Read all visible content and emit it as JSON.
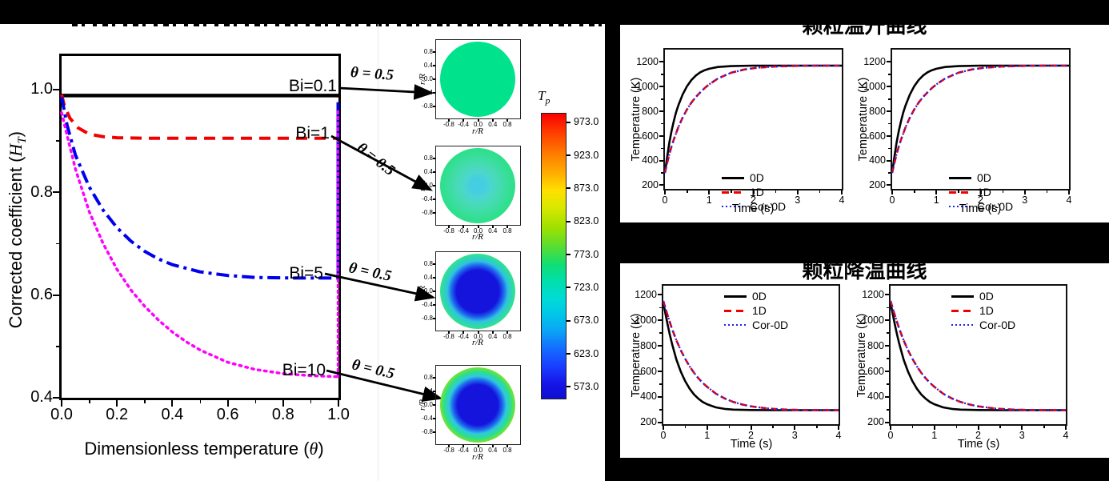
{
  "left_chart": {
    "ylabel_pre": "Corrected coefficient (",
    "ylabel_sym": "H",
    "ylabel_sub": "T",
    "ylabel_post": ")",
    "xlabel_pre": "Dimensionless temperature (",
    "xlabel_sym": "θ",
    "xlabel_post": ")",
    "bi": [
      "Bi=0.1",
      "Bi=1",
      "Bi=5",
      "Bi=10"
    ],
    "theta_annotation": "θ = 0.5"
  },
  "contours": {
    "axis_label": "r/R",
    "colorbar_title_sym": "T",
    "colorbar_title_sub": "p"
  },
  "right_panel": {
    "cards": [
      {
        "title": "颗粒温升曲线"
      },
      {
        "title": "颗粒降温曲线"
      }
    ],
    "legend": [
      "0D",
      "1D",
      "Cor-0D"
    ],
    "xlabel": "Time (s)",
    "ylabel": "Temperature (K)"
  },
  "chart_data": [
    {
      "id": "corrected-coefficient-vs-theta",
      "type": "line",
      "xlabel": "Dimensionless temperature (θ)",
      "ylabel": "Corrected coefficient (H_T)",
      "xlim": [
        0,
        1
      ],
      "ylim": [
        0.4,
        1.065
      ],
      "grid": false,
      "legend_position": "inline-labels",
      "xticks": {
        "vals": [
          0,
          0.2,
          0.4,
          0.6,
          0.8,
          1
        ],
        "labels": [
          "0.0",
          "0.2",
          "0.4",
          "0.6",
          "0.8",
          "1.0"
        ]
      },
      "yticks": {
        "vals": [
          0.4,
          0.6,
          0.8,
          1.0
        ],
        "labels": [
          "0.4",
          "0.6",
          "0.8",
          "1.0"
        ]
      },
      "xminor": [
        0.1,
        0.3,
        0.5,
        0.7,
        0.9
      ],
      "yminor": [
        0.5,
        0.7,
        0.9
      ],
      "tick": 8,
      "mtick": 4,
      "b": 3,
      "lab": {
        "xw": 46,
        "xoff": 7,
        "yw": 50,
        "yoff": 8,
        "fs": 20
      },
      "series": [
        {
          "name": "Bi=0.1",
          "color": "#000000",
          "width": 4.5,
          "points": [
            [
              0,
              0.988
            ],
            [
              1,
              0.988
            ]
          ]
        },
        {
          "name": "Bi=1",
          "color": "#f20000",
          "width": 4,
          "dash": "14 9",
          "points": [
            [
              0,
              0.99
            ],
            [
              0.01,
              0.968
            ],
            [
              0.03,
              0.944
            ],
            [
              0.06,
              0.925
            ],
            [
              0.1,
              0.913
            ],
            [
              0.15,
              0.908
            ],
            [
              0.2,
              0.906
            ],
            [
              0.3,
              0.905
            ],
            [
              0.6,
              0.905
            ],
            [
              1,
              0.905
            ]
          ]
        },
        {
          "name": "Bi=5",
          "color": "#0000ee",
          "width": 4,
          "dash": "16 6 4 6",
          "points": [
            [
              0,
              0.985
            ],
            [
              0.02,
              0.93
            ],
            [
              0.05,
              0.872
            ],
            [
              0.1,
              0.81
            ],
            [
              0.15,
              0.765
            ],
            [
              0.2,
              0.731
            ],
            [
              0.25,
              0.705
            ],
            [
              0.3,
              0.685
            ],
            [
              0.35,
              0.67
            ],
            [
              0.4,
              0.659
            ],
            [
              0.5,
              0.645
            ],
            [
              0.6,
              0.638
            ],
            [
              0.7,
              0.634
            ],
            [
              0.85,
              0.633
            ],
            [
              1,
              0.633
            ]
          ]
        },
        {
          "name": "Bi=10",
          "color": "#ff00ff",
          "width": 3.5,
          "dash": "2.5 5.5",
          "cap": "round",
          "points": [
            [
              0,
              0.955
            ],
            [
              0.02,
              0.91
            ],
            [
              0.05,
              0.845
            ],
            [
              0.1,
              0.762
            ],
            [
              0.15,
              0.7
            ],
            [
              0.2,
              0.65
            ],
            [
              0.25,
              0.61
            ],
            [
              0.3,
              0.578
            ],
            [
              0.35,
              0.551
            ],
            [
              0.4,
              0.528
            ],
            [
              0.45,
              0.509
            ],
            [
              0.5,
              0.493
            ],
            [
              0.6,
              0.469
            ],
            [
              0.7,
              0.455
            ],
            [
              0.8,
              0.447
            ],
            [
              0.9,
              0.443
            ],
            [
              1,
              0.441
            ]
          ]
        },
        {
          "name": "Bi=1-right-edge",
          "color": "#f20000",
          "width": 3.5,
          "dash": "10 7",
          "points": [
            [
              0.998,
              0.905
            ],
            [
              0.998,
              0.985
            ]
          ]
        },
        {
          "name": "Bi=5-right-edge",
          "color": "#0000ee",
          "width": 3.5,
          "points": [
            [
              0.998,
              0.633
            ],
            [
              0.998,
              0.975
            ]
          ]
        },
        {
          "name": "Bi=10-right-edge",
          "color": "#ff00ff",
          "width": 3,
          "dash": "2.5 4.5",
          "cap": "round",
          "points": [
            [
              0.998,
              0.441
            ],
            [
              0.998,
              0.96
            ]
          ]
        }
      ]
    },
    {
      "id": "particle-temperature-contours",
      "type": "heatmap",
      "xlabel": "r/R",
      "ylabel": "r/R",
      "plots": [
        {
          "condition": "Bi=0.1, θ=0.5",
          "profile": "uniform",
          "T_edge_K": 770,
          "T_center_K": 770
        },
        {
          "condition": "Bi=1, θ=0.5",
          "profile": "mild radial gradient",
          "T_edge_K": 760,
          "T_center_K": 690
        },
        {
          "condition": "Bi=5, θ=0.5",
          "profile": "strong radial gradient",
          "T_edge_K": 865,
          "T_center_K": 585
        },
        {
          "condition": "Bi=10, θ=0.5",
          "profile": "steep radial gradient",
          "T_edge_K": 965,
          "T_center_K": 578
        }
      ],
      "mini_cfg": {
        "xlim": [
          -1.15,
          1.15
        ],
        "ylim": [
          -1.15,
          1.15
        ],
        "xticks": {
          "vals": [
            -0.8,
            -0.4,
            0,
            0.4,
            0.8
          ],
          "labels": [
            "-0.8",
            "-0.4",
            "0.0",
            "0.4",
            "0.8"
          ]
        },
        "yticks": {
          "vals": [
            -0.8,
            -0.4,
            0,
            0.4,
            0.8
          ],
          "labels": [
            "-0.8",
            "-0.4",
            "0.0",
            "0.4",
            "0.8"
          ]
        },
        "tick": 3,
        "mtick": 2,
        "b": 1,
        "lab": {
          "xw": 24,
          "xoff": 2,
          "yw": 22,
          "yoff": 3,
          "fs": 8
        }
      },
      "colorbar": {
        "title": "T_p",
        "cmap": "jet",
        "range_K": [
          573,
          973
        ],
        "tick_labels": [
          "973.0",
          "923.0",
          "873.0",
          "823.0",
          "773.0",
          "723.0",
          "673.0",
          "623.0",
          "573.0"
        ],
        "cfg": {
          "xlim": [
            0,
            1
          ],
          "ylim": [
            555,
            986
          ],
          "side": "right",
          "yticks": {
            "vals": [
              973,
              923,
              873,
              823,
              773,
              723,
              673,
              623,
              573
            ],
            "labels": [
              "973.0",
              "923.0",
              "873.0",
              "823.0",
              "773.0",
              "723.0",
              "673.0",
              "623.0",
              "573.0"
            ]
          },
          "tick": 5,
          "b": 1,
          "lab": {
            "yw": 44,
            "yoff": 9,
            "fs": 12.5
          }
        }
      }
    },
    {
      "id": "particle-heating-curves",
      "type": "line",
      "title": "颗粒温升曲线",
      "panels": 2,
      "xlabel": "Time (s)",
      "ylabel": "Temperature (K)",
      "xlim": [
        0,
        4
      ],
      "ylim": [
        170,
        1300
      ],
      "xticks": {
        "vals": [
          0,
          1,
          2,
          3,
          4
        ],
        "labels": [
          "0",
          "1",
          "2",
          "3",
          "4"
        ]
      },
      "yticks": {
        "vals": [
          200,
          400,
          600,
          800,
          1000,
          1200
        ],
        "labels": [
          "200",
          "400",
          "600",
          "800",
          "1000",
          "1200"
        ]
      },
      "xminor": [
        0.5,
        1.5,
        2.5,
        3.5
      ],
      "yminor": [
        300,
        500,
        700,
        900,
        1100
      ],
      "tick": 5,
      "mtick": 3,
      "b": 2,
      "lab": {
        "xw": 30,
        "xoff": 5,
        "yw": 40,
        "yoff": 6,
        "fs": 12.5
      },
      "series": [
        {
          "name": "0D",
          "color": "#000000",
          "width": 2.6,
          "points": [
            [
              0,
              300
            ],
            [
              0.05,
              430
            ],
            [
              0.1,
              545
            ],
            [
              0.15,
              640
            ],
            [
              0.2,
              720
            ],
            [
              0.25,
              788
            ],
            [
              0.3,
              845
            ],
            [
              0.4,
              935
            ],
            [
              0.5,
              1003
            ],
            [
              0.6,
              1053
            ],
            [
              0.7,
              1090
            ],
            [
              0.8,
              1116
            ],
            [
              0.9,
              1133
            ],
            [
              1,
              1145
            ],
            [
              1.2,
              1159
            ],
            [
              1.5,
              1166
            ],
            [
              2,
              1170
            ],
            [
              3,
              1170
            ],
            [
              4,
              1170
            ]
          ]
        },
        {
          "name": "1D",
          "color": "#f20000",
          "width": 2.6,
          "dash": "8 5",
          "points": [
            [
              0,
              300
            ],
            [
              0.05,
              380
            ],
            [
              0.1,
              452
            ],
            [
              0.15,
              515
            ],
            [
              0.2,
              570
            ],
            [
              0.3,
              668
            ],
            [
              0.4,
              748
            ],
            [
              0.5,
              815
            ],
            [
              0.6,
              870
            ],
            [
              0.7,
              916
            ],
            [
              0.8,
              953
            ],
            [
              0.9,
              988
            ],
            [
              1,
              1018
            ],
            [
              1.2,
              1066
            ],
            [
              1.5,
              1113
            ],
            [
              1.8,
              1139
            ],
            [
              2.1,
              1154
            ],
            [
              2.5,
              1163
            ],
            [
              3,
              1168
            ],
            [
              3.5,
              1170
            ],
            [
              4,
              1170
            ]
          ]
        },
        {
          "name": "Cor-0D",
          "color": "#2222ee",
          "width": 2.3,
          "dash": "2 3.5",
          "ref": "chart_data.2.series.1.points"
        }
      ]
    },
    {
      "id": "particle-cooling-curves",
      "type": "line",
      "title": "颗粒降温曲线",
      "panels": 2,
      "xlabel": "Time (s)",
      "ylabel": "Temperature (K)",
      "xlim": [
        0,
        4
      ],
      "ylim": [
        185,
        1270
      ],
      "xticks": {
        "vals": [
          0,
          1,
          2,
          3,
          4
        ],
        "labels": [
          "0",
          "1",
          "2",
          "3",
          "4"
        ]
      },
      "yticks": {
        "vals": [
          200,
          400,
          600,
          800,
          1000,
          1200
        ],
        "labels": [
          "200",
          "400",
          "600",
          "800",
          "1000",
          "1200"
        ]
      },
      "xminor": [
        0.5,
        1.5,
        2.5,
        3.5
      ],
      "yminor": [
        300,
        500,
        700,
        900,
        1100
      ],
      "tick": 5,
      "mtick": 3,
      "b": 2,
      "lab": {
        "xw": 30,
        "xoff": 5,
        "yw": 40,
        "yoff": 6,
        "fs": 12.5
      },
      "series": [
        {
          "name": "0D",
          "color": "#000000",
          "width": 2.6,
          "points": [
            [
              0,
              1140
            ],
            [
              0.05,
              1050
            ],
            [
              0.1,
              962
            ],
            [
              0.15,
              884
            ],
            [
              0.2,
              812
            ],
            [
              0.3,
              690
            ],
            [
              0.4,
              596
            ],
            [
              0.5,
              521
            ],
            [
              0.6,
              463
            ],
            [
              0.7,
              418
            ],
            [
              0.8,
              385
            ],
            [
              0.9,
              359
            ],
            [
              1,
              341
            ],
            [
              1.2,
              317
            ],
            [
              1.4,
              305
            ],
            [
              1.6,
              299
            ],
            [
              2,
              296
            ],
            [
              2.5,
              295
            ],
            [
              3,
              295
            ],
            [
              4,
              295
            ]
          ]
        },
        {
          "name": "1D",
          "color": "#f20000",
          "width": 2.6,
          "dash": "8 5",
          "points": [
            [
              0,
              1150
            ],
            [
              0.1,
              1035
            ],
            [
              0.2,
              930
            ],
            [
              0.3,
              841
            ],
            [
              0.4,
              763
            ],
            [
              0.5,
              696
            ],
            [
              0.6,
              638
            ],
            [
              0.7,
              588
            ],
            [
              0.8,
              545
            ],
            [
              0.9,
              508
            ],
            [
              1,
              477
            ],
            [
              1.2,
              424
            ],
            [
              1.4,
              387
            ],
            [
              1.6,
              359
            ],
            [
              1.8,
              339
            ],
            [
              2,
              325
            ],
            [
              2.4,
              307
            ],
            [
              2.8,
              299
            ],
            [
              3.2,
              296
            ],
            [
              4,
              295
            ]
          ]
        },
        {
          "name": "Cor-0D",
          "color": "#2222ee",
          "width": 2.3,
          "dash": "2 3.5",
          "ref": "chart_data.3.series.1.points"
        }
      ]
    }
  ]
}
